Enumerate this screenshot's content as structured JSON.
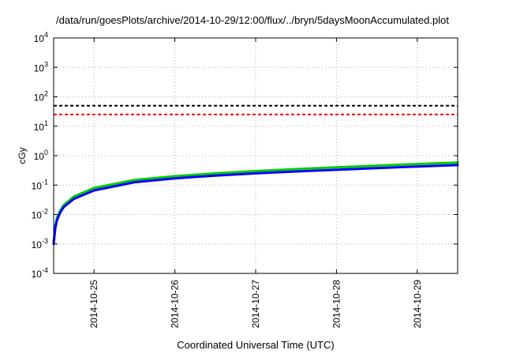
{
  "chart_data": {
    "type": "line",
    "title": "/data/run/goesPlots/archive/2014-10-29/12:00/flux/../bryn/5daysMoonAccumulated.plot",
    "xlabel": "Coordinated Universal Time (UTC)",
    "ylabel": "cGy",
    "y_scale": "log",
    "ylim": [
      0.0001,
      10000
    ],
    "y_ticks": [
      {
        "base": "10",
        "exp": "-4"
      },
      {
        "base": "10",
        "exp": "-3"
      },
      {
        "base": "10",
        "exp": "-2"
      },
      {
        "base": "10",
        "exp": "-1"
      },
      {
        "base": "10",
        "exp": "0"
      },
      {
        "base": "10",
        "exp": "1"
      },
      {
        "base": "10",
        "exp": "2"
      },
      {
        "base": "10",
        "exp": "3"
      },
      {
        "base": "10",
        "exp": "4"
      }
    ],
    "xlim": [
      "2014-10-24T12:00",
      "2014-10-29T12:00"
    ],
    "x_ticks": [
      "2014-10-25",
      "2014-10-26",
      "2014-10-27",
      "2014-10-28",
      "2014-10-29"
    ],
    "grid": true,
    "reference_lines": [
      {
        "y": 50,
        "color": "#000000",
        "style": "dashed"
      },
      {
        "y": 25,
        "color": "#ff0000",
        "style": "dashed"
      }
    ],
    "series": [
      {
        "color": "#00cc00",
        "x": [
          "2014-10-24T12:00",
          "2014-10-24T12:30",
          "2014-10-24T13:00",
          "2014-10-24T14:00",
          "2014-10-24T15:00",
          "2014-10-24T18:00",
          "2014-10-25T00:00",
          "2014-10-25T12:00",
          "2014-10-26T00:00",
          "2014-10-26T12:00",
          "2014-10-27T00:00",
          "2014-10-27T12:00",
          "2014-10-28T00:00",
          "2014-10-28T12:00",
          "2014-10-29T00:00",
          "2014-10-29T12:00"
        ],
        "values": [
          0.0011,
          0.0042,
          0.0078,
          0.014,
          0.021,
          0.041,
          0.08,
          0.15,
          0.2,
          0.25,
          0.3,
          0.35,
          0.4,
          0.46,
          0.52,
          0.58
        ]
      },
      {
        "color": "#0000ff",
        "x": [
          "2014-10-24T12:00",
          "2014-10-24T12:30",
          "2014-10-24T13:00",
          "2014-10-24T14:00",
          "2014-10-24T15:00",
          "2014-10-24T18:00",
          "2014-10-25T00:00",
          "2014-10-25T12:00",
          "2014-10-26T00:00",
          "2014-10-26T12:00",
          "2014-10-27T00:00",
          "2014-10-27T12:00",
          "2014-10-28T00:00",
          "2014-10-28T12:00",
          "2014-10-29T00:00",
          "2014-10-29T12:00"
        ],
        "values": [
          0.001,
          0.0035,
          0.0065,
          0.012,
          0.018,
          0.034,
          0.066,
          0.125,
          0.17,
          0.21,
          0.25,
          0.29,
          0.33,
          0.38,
          0.43,
          0.48
        ]
      }
    ]
  }
}
